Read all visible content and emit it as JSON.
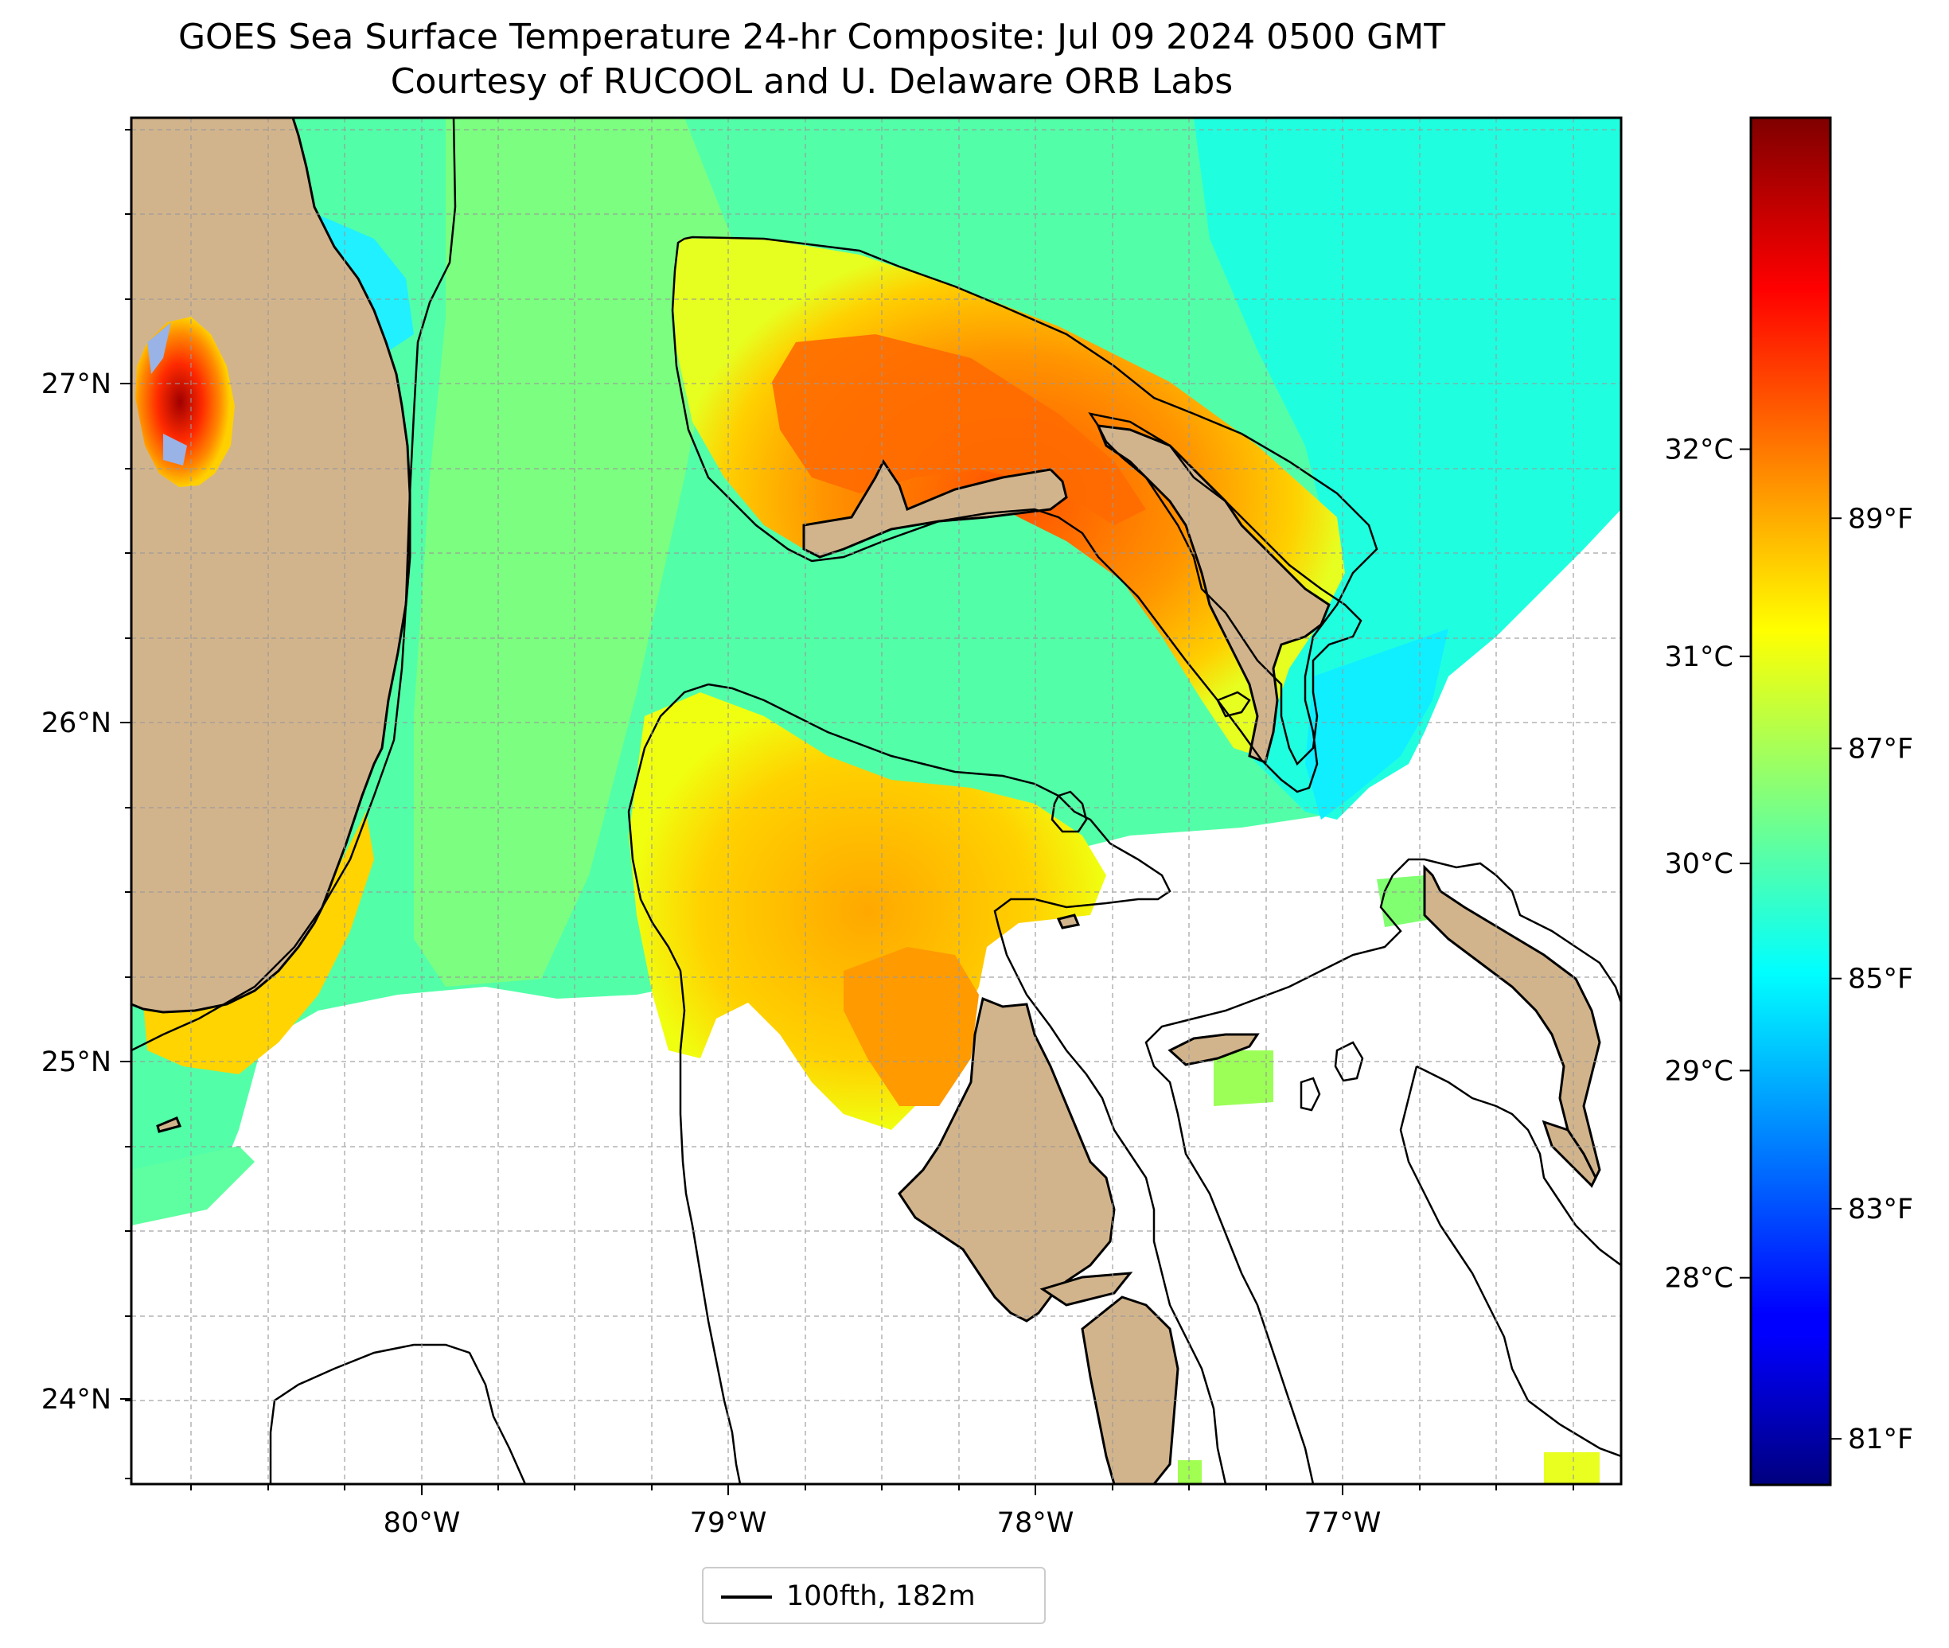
{
  "title": {
    "line1": "GOES Sea Surface Temperature 24-hr Composite: Jul 09 2024 0500 GMT",
    "line2": "Courtesy of RUCOOL and U. Delaware ORB Labs"
  },
  "map": {
    "extent": {
      "lon": [
        -80.95,
        -76.1
      ],
      "lat": [
        23.74,
        27.8
      ]
    },
    "lon_ticks": [
      {
        "value": -80,
        "label": "80°W"
      },
      {
        "value": -79,
        "label": "79°W"
      },
      {
        "value": -78,
        "label": "78°W"
      },
      {
        "value": -77,
        "label": "77°W"
      }
    ],
    "lat_ticks": [
      {
        "value": 27,
        "label": "27°N"
      },
      {
        "value": 26,
        "label": "26°N"
      },
      {
        "value": 25,
        "label": "25°N"
      },
      {
        "value": 24,
        "label": "24°N"
      }
    ],
    "gridlines": true,
    "land_color": "#d2b48c",
    "no_data_color": "#ffffff"
  },
  "colorbar": {
    "colormap": "jet",
    "range_c": [
      27.0,
      33.6
    ],
    "celsius_ticks": [
      {
        "value": 28,
        "label": "28°C"
      },
      {
        "value": 29,
        "label": "29°C"
      },
      {
        "value": 30,
        "label": "30°C"
      },
      {
        "value": 31,
        "label": "31°C"
      },
      {
        "value": 32,
        "label": "32°C"
      }
    ],
    "fahrenheit_ticks": [
      {
        "value": 81,
        "label": "81°F"
      },
      {
        "value": 83,
        "label": "83°F"
      },
      {
        "value": 85,
        "label": "85°F"
      },
      {
        "value": 87,
        "label": "87°F"
      },
      {
        "value": 89,
        "label": "89°F"
      }
    ]
  },
  "legend": {
    "items": [
      {
        "label": "100fth, 182m",
        "color": "#000000"
      }
    ]
  }
}
